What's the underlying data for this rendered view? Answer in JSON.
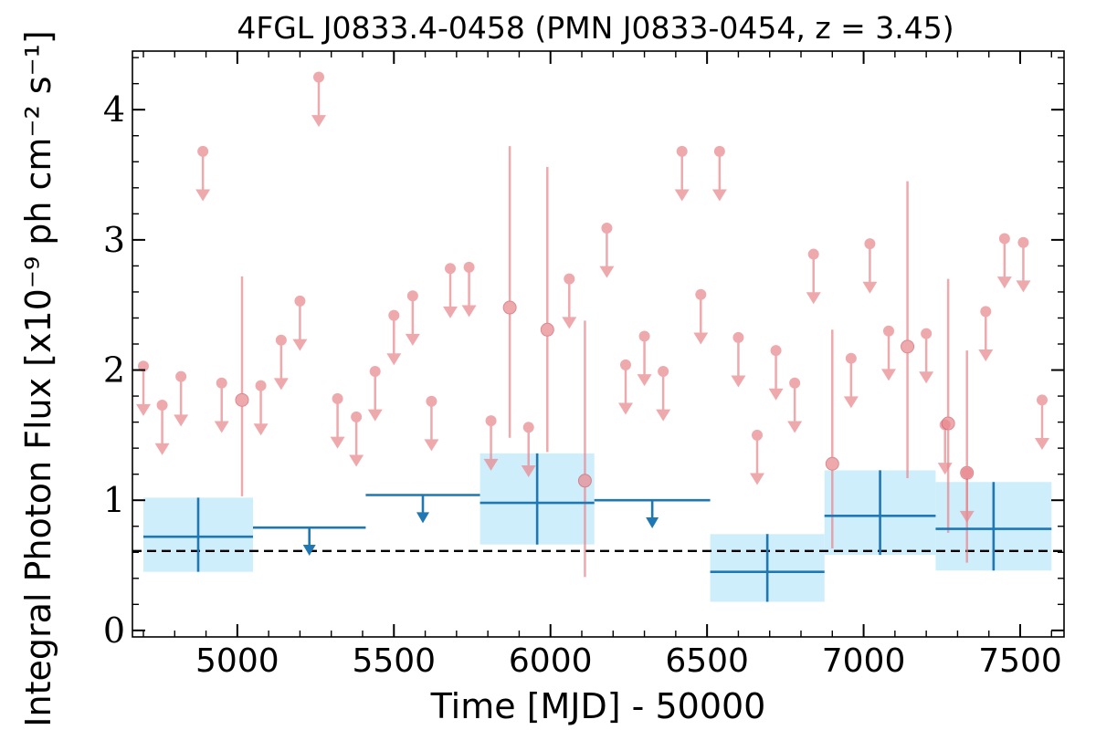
{
  "chart_data": {
    "type": "scatter",
    "title": "4FGL J0833.4-0458 (PMN J0833-0454, z = 3.45)",
    "xlabel": "Time [MJD] - 50000",
    "ylabel": "Integral Photon Flux [x10⁻⁹ ph cm⁻² s⁻¹]",
    "xlim": [
      4665,
      7640
    ],
    "ylim": [
      -0.05,
      4.45
    ],
    "xticks": [
      5000,
      5500,
      6000,
      6500,
      7000,
      7500
    ],
    "yticks": [
      0,
      1,
      2,
      3,
      4
    ],
    "reference_line": {
      "y": 0.61,
      "style": "dashed",
      "color": "#000000"
    },
    "colors": {
      "short_bins": "#e8888e",
      "long_bins": "#1f77b4",
      "long_band": "#cfeefc"
    },
    "short_bins": {
      "upper_limits": [
        [
          4700,
          2.03
        ],
        [
          4760,
          1.73
        ],
        [
          4820,
          1.95
        ],
        [
          4890,
          3.68
        ],
        [
          4950,
          1.9
        ],
        [
          5075,
          1.88
        ],
        [
          5140,
          2.23
        ],
        [
          5200,
          2.53
        ],
        [
          5260,
          4.25
        ],
        [
          5320,
          1.78
        ],
        [
          5380,
          1.64
        ],
        [
          5440,
          1.99
        ],
        [
          5500,
          2.42
        ],
        [
          5560,
          2.57
        ],
        [
          5620,
          1.76
        ],
        [
          5680,
          2.78
        ],
        [
          5740,
          2.79
        ],
        [
          5810,
          1.61
        ],
        [
          5930,
          1.56
        ],
        [
          6060,
          2.7
        ],
        [
          6180,
          3.09
        ],
        [
          6240,
          2.04
        ],
        [
          6300,
          2.26
        ],
        [
          6360,
          1.99
        ],
        [
          6420,
          3.68
        ],
        [
          6480,
          2.58
        ],
        [
          6540,
          3.68
        ],
        [
          6600,
          2.25
        ],
        [
          6660,
          1.5
        ],
        [
          6720,
          2.15
        ],
        [
          6780,
          1.9
        ],
        [
          6840,
          2.89
        ],
        [
          6960,
          2.09
        ],
        [
          7020,
          2.97
        ],
        [
          7080,
          2.3
        ],
        [
          7200,
          2.28
        ],
        [
          7260,
          1.58
        ],
        [
          7330,
          1.21
        ],
        [
          7390,
          2.45
        ],
        [
          7450,
          3.01
        ],
        [
          7510,
          2.98
        ],
        [
          7570,
          1.77
        ]
      ],
      "detections": [
        {
          "x": 5015,
          "y": 1.77,
          "y_lo": 1.03,
          "y_hi": 2.72
        },
        {
          "x": 5870,
          "y": 2.48,
          "y_lo": 1.48,
          "y_hi": 3.72
        },
        {
          "x": 5990,
          "y": 2.31,
          "y_lo": 1.37,
          "y_hi": 3.56
        },
        {
          "x": 6110,
          "y": 1.15,
          "y_lo": 0.41,
          "y_hi": 2.38
        },
        {
          "x": 6900,
          "y": 1.28,
          "y_lo": 0.63,
          "y_hi": 2.31
        },
        {
          "x": 7140,
          "y": 2.18,
          "y_lo": 1.17,
          "y_hi": 3.45
        },
        {
          "x": 7270,
          "y": 1.59,
          "y_lo": 0.75,
          "y_hi": 2.7
        },
        {
          "x": 7330,
          "y": 1.21,
          "y_lo": 0.52,
          "y_hi": 2.15
        }
      ]
    },
    "long_bins": {
      "detections": [
        {
          "x0": 4700,
          "x1": 5050,
          "y": 0.72,
          "y_lo": 0.45,
          "y_hi": 1.02
        },
        {
          "x0": 5775,
          "x1": 6140,
          "y": 0.98,
          "y_lo": 0.66,
          "y_hi": 1.36
        },
        {
          "x0": 6510,
          "x1": 6875,
          "y": 0.45,
          "y_lo": 0.22,
          "y_hi": 0.74
        },
        {
          "x0": 6875,
          "x1": 7230,
          "y": 0.88,
          "y_lo": 0.58,
          "y_hi": 1.23
        },
        {
          "x0": 7230,
          "x1": 7600,
          "y": 0.78,
          "y_lo": 0.46,
          "y_hi": 1.14
        }
      ],
      "upper_limits": [
        {
          "x0": 5050,
          "x1": 5410,
          "y": 0.79
        },
        {
          "x0": 5410,
          "x1": 5775,
          "y": 1.04
        },
        {
          "x0": 6140,
          "x1": 6510,
          "y": 1.0
        }
      ]
    }
  }
}
